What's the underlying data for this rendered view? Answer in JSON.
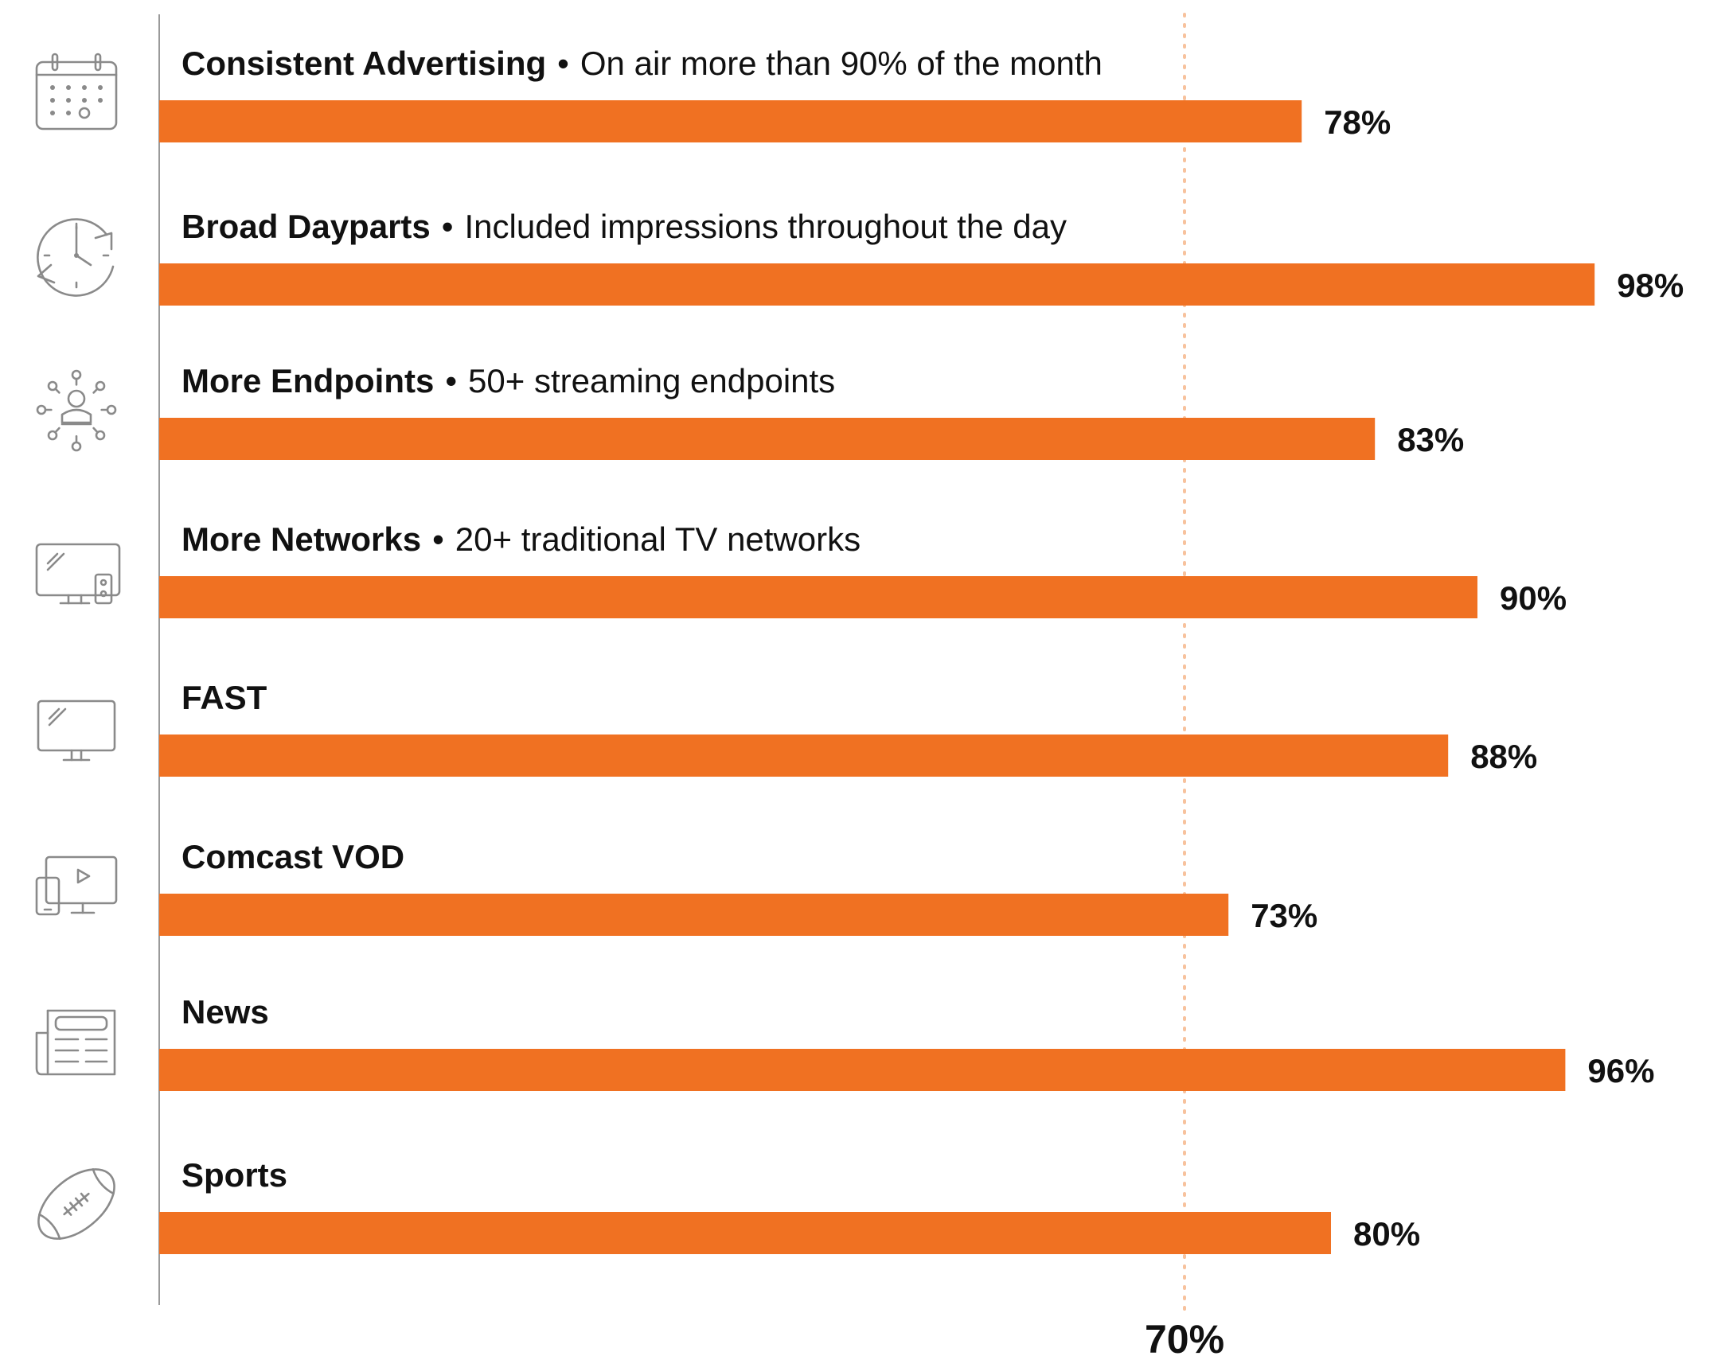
{
  "chart_data": {
    "type": "bar",
    "orientation": "horizontal",
    "categories": [
      {
        "name": "Consistent Advertising",
        "description": "On air more than 90% of the month",
        "icon": "calendar-icon"
      },
      {
        "name": "Broad Dayparts",
        "description": "Included impressions throughout the day",
        "icon": "clock-cycle-icon"
      },
      {
        "name": "More Endpoints",
        "description": "50+ streaming endpoints",
        "icon": "user-network-icon"
      },
      {
        "name": "More Networks",
        "description": "20+ traditional TV networks",
        "icon": "tv-remote-icon"
      },
      {
        "name": "FAST",
        "description": "",
        "icon": "tv-icon"
      },
      {
        "name": "Comcast VOD",
        "description": "",
        "icon": "devices-play-icon"
      },
      {
        "name": "News",
        "description": "",
        "icon": "newspaper-icon"
      },
      {
        "name": "Sports",
        "description": "",
        "icon": "football-icon"
      }
    ],
    "values": [
      78,
      98,
      83,
      90,
      88,
      73,
      96,
      80
    ],
    "value_labels": [
      "78%",
      "98%",
      "83%",
      "90%",
      "88%",
      "73%",
      "96%",
      "80%"
    ],
    "xlim": [
      0,
      100
    ],
    "reference_line": {
      "value": 70,
      "label": "70%",
      "style": "dotted"
    },
    "bar_color": "#f07122",
    "reference_color": "#f7c29d",
    "icon_color": "#8a8a8a",
    "axis_color": "#9a9a9a",
    "text_color": "#111111",
    "separator": "•",
    "title": "",
    "xlabel": "",
    "ylabel": "",
    "grid": false,
    "legend": "none"
  }
}
